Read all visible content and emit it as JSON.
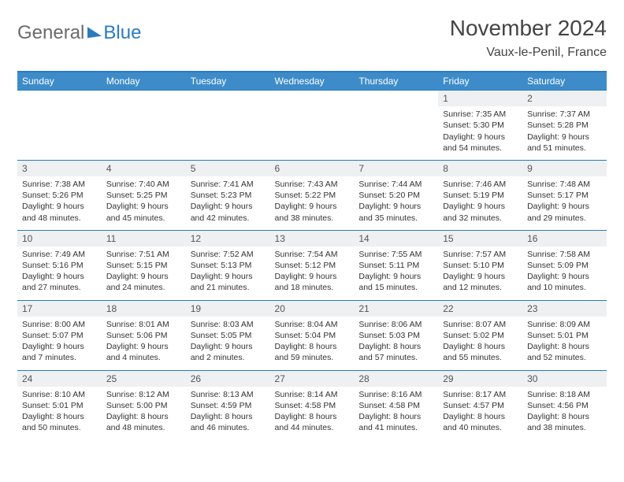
{
  "logo": {
    "part1": "General",
    "part2": "Blue"
  },
  "title": "November 2024",
  "location": "Vaux-le-Penil, France",
  "colors": {
    "header_bg": "#3d8cc9",
    "border": "#2b7bbf",
    "daynum_bg": "#eef0f2",
    "text": "#333333",
    "logo_grey": "#6b6b6b",
    "logo_blue": "#2b7bbf"
  },
  "dayNames": [
    "Sunday",
    "Monday",
    "Tuesday",
    "Wednesday",
    "Thursday",
    "Friday",
    "Saturday"
  ],
  "weeks": [
    [
      {
        "n": "",
        "sr": "",
        "ss": "",
        "dl": ""
      },
      {
        "n": "",
        "sr": "",
        "ss": "",
        "dl": ""
      },
      {
        "n": "",
        "sr": "",
        "ss": "",
        "dl": ""
      },
      {
        "n": "",
        "sr": "",
        "ss": "",
        "dl": ""
      },
      {
        "n": "",
        "sr": "",
        "ss": "",
        "dl": ""
      },
      {
        "n": "1",
        "sr": "Sunrise: 7:35 AM",
        "ss": "Sunset: 5:30 PM",
        "dl": "Daylight: 9 hours and 54 minutes."
      },
      {
        "n": "2",
        "sr": "Sunrise: 7:37 AM",
        "ss": "Sunset: 5:28 PM",
        "dl": "Daylight: 9 hours and 51 minutes."
      }
    ],
    [
      {
        "n": "3",
        "sr": "Sunrise: 7:38 AM",
        "ss": "Sunset: 5:26 PM",
        "dl": "Daylight: 9 hours and 48 minutes."
      },
      {
        "n": "4",
        "sr": "Sunrise: 7:40 AM",
        "ss": "Sunset: 5:25 PM",
        "dl": "Daylight: 9 hours and 45 minutes."
      },
      {
        "n": "5",
        "sr": "Sunrise: 7:41 AM",
        "ss": "Sunset: 5:23 PM",
        "dl": "Daylight: 9 hours and 42 minutes."
      },
      {
        "n": "6",
        "sr": "Sunrise: 7:43 AM",
        "ss": "Sunset: 5:22 PM",
        "dl": "Daylight: 9 hours and 38 minutes."
      },
      {
        "n": "7",
        "sr": "Sunrise: 7:44 AM",
        "ss": "Sunset: 5:20 PM",
        "dl": "Daylight: 9 hours and 35 minutes."
      },
      {
        "n": "8",
        "sr": "Sunrise: 7:46 AM",
        "ss": "Sunset: 5:19 PM",
        "dl": "Daylight: 9 hours and 32 minutes."
      },
      {
        "n": "9",
        "sr": "Sunrise: 7:48 AM",
        "ss": "Sunset: 5:17 PM",
        "dl": "Daylight: 9 hours and 29 minutes."
      }
    ],
    [
      {
        "n": "10",
        "sr": "Sunrise: 7:49 AM",
        "ss": "Sunset: 5:16 PM",
        "dl": "Daylight: 9 hours and 27 minutes."
      },
      {
        "n": "11",
        "sr": "Sunrise: 7:51 AM",
        "ss": "Sunset: 5:15 PM",
        "dl": "Daylight: 9 hours and 24 minutes."
      },
      {
        "n": "12",
        "sr": "Sunrise: 7:52 AM",
        "ss": "Sunset: 5:13 PM",
        "dl": "Daylight: 9 hours and 21 minutes."
      },
      {
        "n": "13",
        "sr": "Sunrise: 7:54 AM",
        "ss": "Sunset: 5:12 PM",
        "dl": "Daylight: 9 hours and 18 minutes."
      },
      {
        "n": "14",
        "sr": "Sunrise: 7:55 AM",
        "ss": "Sunset: 5:11 PM",
        "dl": "Daylight: 9 hours and 15 minutes."
      },
      {
        "n": "15",
        "sr": "Sunrise: 7:57 AM",
        "ss": "Sunset: 5:10 PM",
        "dl": "Daylight: 9 hours and 12 minutes."
      },
      {
        "n": "16",
        "sr": "Sunrise: 7:58 AM",
        "ss": "Sunset: 5:09 PM",
        "dl": "Daylight: 9 hours and 10 minutes."
      }
    ],
    [
      {
        "n": "17",
        "sr": "Sunrise: 8:00 AM",
        "ss": "Sunset: 5:07 PM",
        "dl": "Daylight: 9 hours and 7 minutes."
      },
      {
        "n": "18",
        "sr": "Sunrise: 8:01 AM",
        "ss": "Sunset: 5:06 PM",
        "dl": "Daylight: 9 hours and 4 minutes."
      },
      {
        "n": "19",
        "sr": "Sunrise: 8:03 AM",
        "ss": "Sunset: 5:05 PM",
        "dl": "Daylight: 9 hours and 2 minutes."
      },
      {
        "n": "20",
        "sr": "Sunrise: 8:04 AM",
        "ss": "Sunset: 5:04 PM",
        "dl": "Daylight: 8 hours and 59 minutes."
      },
      {
        "n": "21",
        "sr": "Sunrise: 8:06 AM",
        "ss": "Sunset: 5:03 PM",
        "dl": "Daylight: 8 hours and 57 minutes."
      },
      {
        "n": "22",
        "sr": "Sunrise: 8:07 AM",
        "ss": "Sunset: 5:02 PM",
        "dl": "Daylight: 8 hours and 55 minutes."
      },
      {
        "n": "23",
        "sr": "Sunrise: 8:09 AM",
        "ss": "Sunset: 5:01 PM",
        "dl": "Daylight: 8 hours and 52 minutes."
      }
    ],
    [
      {
        "n": "24",
        "sr": "Sunrise: 8:10 AM",
        "ss": "Sunset: 5:01 PM",
        "dl": "Daylight: 8 hours and 50 minutes."
      },
      {
        "n": "25",
        "sr": "Sunrise: 8:12 AM",
        "ss": "Sunset: 5:00 PM",
        "dl": "Daylight: 8 hours and 48 minutes."
      },
      {
        "n": "26",
        "sr": "Sunrise: 8:13 AM",
        "ss": "Sunset: 4:59 PM",
        "dl": "Daylight: 8 hours and 46 minutes."
      },
      {
        "n": "27",
        "sr": "Sunrise: 8:14 AM",
        "ss": "Sunset: 4:58 PM",
        "dl": "Daylight: 8 hours and 44 minutes."
      },
      {
        "n": "28",
        "sr": "Sunrise: 8:16 AM",
        "ss": "Sunset: 4:58 PM",
        "dl": "Daylight: 8 hours and 41 minutes."
      },
      {
        "n": "29",
        "sr": "Sunrise: 8:17 AM",
        "ss": "Sunset: 4:57 PM",
        "dl": "Daylight: 8 hours and 40 minutes."
      },
      {
        "n": "30",
        "sr": "Sunrise: 8:18 AM",
        "ss": "Sunset: 4:56 PM",
        "dl": "Daylight: 8 hours and 38 minutes."
      }
    ]
  ]
}
